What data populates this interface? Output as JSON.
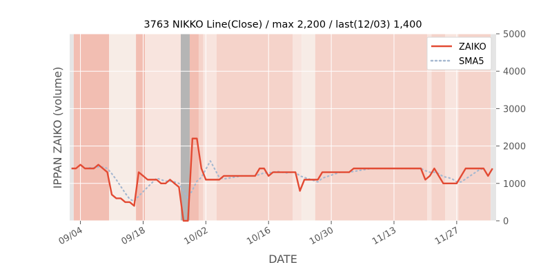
{
  "chart_data": {
    "type": "line",
    "title": "3763 NIKKO Line(Close) / max 2,200 / last(12/03) 1,400",
    "xlabel": "DATE",
    "ylabel": "IPPAN ZAIKO (volume)",
    "ylim": [
      0,
      5000
    ],
    "y_ticks": [
      0,
      1000,
      2000,
      3000,
      4000,
      5000
    ],
    "y_axis_side": "right",
    "x_ticks": [
      "09/04",
      "09/18",
      "10/02",
      "10/16",
      "10/30",
      "11/13",
      "11/27"
    ],
    "x_tick_days": [
      0,
      14,
      28,
      42,
      56,
      70,
      84
    ],
    "x_range_days": [
      -2.4,
      92.8
    ],
    "legend_position": "top-right",
    "grid": true,
    "colors": {
      "zaiko": "#e24a33",
      "sma5": "#a5b8d0",
      "band_strong": "#f2beb2",
      "band_mid": "#f5d3ca",
      "band_light": "#f8e4de",
      "band_pale": "#f7ece6",
      "band_gray": "#b5b5b5",
      "band_edge": "#e5e5e5"
    },
    "bands": [
      {
        "from": -2.4,
        "to": -1.5,
        "tone": "band_edge"
      },
      {
        "from": -1.5,
        "to": 6.4,
        "tone": "band_strong"
      },
      {
        "from": 6.4,
        "to": 12.4,
        "tone": "band_pale"
      },
      {
        "from": 12.4,
        "to": 14.4,
        "tone": "band_strong"
      },
      {
        "from": 14.4,
        "to": 22.4,
        "tone": "band_light"
      },
      {
        "from": 22.4,
        "to": 24.4,
        "tone": "band_gray"
      },
      {
        "from": 24.4,
        "to": 26.4,
        "tone": "band_strong"
      },
      {
        "from": 26.4,
        "to": 27.4,
        "tone": "band_mid"
      },
      {
        "from": 27.4,
        "to": 30.4,
        "tone": "band_light"
      },
      {
        "from": 30.4,
        "to": 47.4,
        "tone": "band_mid"
      },
      {
        "from": 47.4,
        "to": 49.4,
        "tone": "band_light"
      },
      {
        "from": 49.4,
        "to": 52.4,
        "tone": "band_pale"
      },
      {
        "from": 52.4,
        "to": 77.4,
        "tone": "band_mid"
      },
      {
        "from": 77.4,
        "to": 78.4,
        "tone": "band_light"
      },
      {
        "from": 78.4,
        "to": 81.4,
        "tone": "band_mid"
      },
      {
        "from": 81.4,
        "to": 84.4,
        "tone": "band_light"
      },
      {
        "from": 84.4,
        "to": 91.6,
        "tone": "band_mid"
      },
      {
        "from": 91.6,
        "to": 92.8,
        "tone": "band_edge"
      }
    ],
    "series": [
      {
        "name": "ZAIKO",
        "style": "solid",
        "points": [
          [
            -2,
            1400
          ],
          [
            -1,
            1400
          ],
          [
            0,
            1500
          ],
          [
            1,
            1400
          ],
          [
            2,
            1400
          ],
          [
            3,
            1400
          ],
          [
            4,
            1500
          ],
          [
            5,
            1400
          ],
          [
            6,
            1300
          ],
          [
            7,
            700
          ],
          [
            8,
            600
          ],
          [
            9,
            600
          ],
          [
            10,
            500
          ],
          [
            11,
            500
          ],
          [
            12,
            400
          ],
          [
            13,
            1300
          ],
          [
            14,
            1200
          ],
          [
            15,
            1100
          ],
          [
            16,
            1100
          ],
          [
            17,
            1100
          ],
          [
            18,
            1000
          ],
          [
            19,
            1000
          ],
          [
            20,
            1100
          ],
          [
            21,
            1000
          ],
          [
            22,
            900
          ],
          [
            23,
            0
          ],
          [
            24,
            0
          ],
          [
            25,
            2200
          ],
          [
            26,
            2200
          ],
          [
            27,
            1400
          ],
          [
            28,
            1100
          ],
          [
            29,
            1100
          ],
          [
            30,
            1100
          ],
          [
            31,
            1100
          ],
          [
            32,
            1200
          ],
          [
            33,
            1200
          ],
          [
            34,
            1200
          ],
          [
            35,
            1200
          ],
          [
            36,
            1200
          ],
          [
            37,
            1200
          ],
          [
            38,
            1200
          ],
          [
            39,
            1200
          ],
          [
            40,
            1400
          ],
          [
            41,
            1400
          ],
          [
            42,
            1200
          ],
          [
            43,
            1300
          ],
          [
            44,
            1300
          ],
          [
            45,
            1300
          ],
          [
            46,
            1300
          ],
          [
            47,
            1300
          ],
          [
            48,
            1300
          ],
          [
            49,
            800
          ],
          [
            50,
            1100
          ],
          [
            51,
            1100
          ],
          [
            52,
            1100
          ],
          [
            53,
            1100
          ],
          [
            54,
            1300
          ],
          [
            55,
            1300
          ],
          [
            56,
            1300
          ],
          [
            57,
            1300
          ],
          [
            58,
            1300
          ],
          [
            59,
            1300
          ],
          [
            60,
            1300
          ],
          [
            61,
            1400
          ],
          [
            62,
            1400
          ],
          [
            63,
            1400
          ],
          [
            64,
            1400
          ],
          [
            65,
            1400
          ],
          [
            66,
            1400
          ],
          [
            67,
            1400
          ],
          [
            68,
            1400
          ],
          [
            69,
            1400
          ],
          [
            70,
            1400
          ],
          [
            71,
            1400
          ],
          [
            72,
            1400
          ],
          [
            73,
            1400
          ],
          [
            74,
            1400
          ],
          [
            75,
            1400
          ],
          [
            76,
            1400
          ],
          [
            77,
            1100
          ],
          [
            78,
            1200
          ],
          [
            79,
            1400
          ],
          [
            80,
            1200
          ],
          [
            81,
            1000
          ],
          [
            82,
            1000
          ],
          [
            83,
            1000
          ],
          [
            84,
            1000
          ],
          [
            85,
            1200
          ],
          [
            86,
            1400
          ],
          [
            87,
            1400
          ],
          [
            88,
            1400
          ],
          [
            89,
            1400
          ],
          [
            90,
            1400
          ],
          [
            91,
            1200
          ],
          [
            92,
            1400
          ]
        ]
      },
      {
        "name": "SMA5",
        "style": "dotted",
        "points": [
          [
            2,
            1420
          ],
          [
            3,
            1420
          ],
          [
            4,
            1440
          ],
          [
            5,
            1440
          ],
          [
            6,
            1400
          ],
          [
            7,
            1260
          ],
          [
            8,
            1100
          ],
          [
            9,
            920
          ],
          [
            10,
            740
          ],
          [
            11,
            580
          ],
          [
            12,
            520
          ],
          [
            13,
            660
          ],
          [
            14,
            780
          ],
          [
            15,
            900
          ],
          [
            16,
            1020
          ],
          [
            17,
            1140
          ],
          [
            18,
            1100
          ],
          [
            19,
            1060
          ],
          [
            20,
            1060
          ],
          [
            21,
            1040
          ],
          [
            22,
            1000
          ],
          [
            23,
            800
          ],
          [
            24,
            600
          ],
          [
            25,
            820
          ],
          [
            26,
            1060
          ],
          [
            27,
            1160
          ],
          [
            28,
            1380
          ],
          [
            29,
            1600
          ],
          [
            30,
            1380
          ],
          [
            31,
            1160
          ],
          [
            32,
            1120
          ],
          [
            33,
            1140
          ],
          [
            34,
            1160
          ],
          [
            35,
            1180
          ],
          [
            36,
            1200
          ],
          [
            37,
            1200
          ],
          [
            38,
            1200
          ],
          [
            39,
            1200
          ],
          [
            40,
            1240
          ],
          [
            41,
            1280
          ],
          [
            42,
            1280
          ],
          [
            43,
            1300
          ],
          [
            44,
            1320
          ],
          [
            45,
            1300
          ],
          [
            46,
            1280
          ],
          [
            47,
            1300
          ],
          [
            48,
            1300
          ],
          [
            49,
            1200
          ],
          [
            50,
            1160
          ],
          [
            51,
            1120
          ],
          [
            52,
            1080
          ],
          [
            53,
            1040
          ],
          [
            54,
            1140
          ],
          [
            55,
            1180
          ],
          [
            56,
            1220
          ],
          [
            57,
            1260
          ],
          [
            58,
            1300
          ],
          [
            59,
            1300
          ],
          [
            60,
            1300
          ],
          [
            61,
            1320
          ],
          [
            62,
            1340
          ],
          [
            63,
            1360
          ],
          [
            64,
            1380
          ],
          [
            65,
            1400
          ],
          [
            66,
            1400
          ],
          [
            67,
            1400
          ],
          [
            68,
            1400
          ],
          [
            69,
            1400
          ],
          [
            70,
            1400
          ],
          [
            71,
            1400
          ],
          [
            72,
            1400
          ],
          [
            73,
            1400
          ],
          [
            74,
            1400
          ],
          [
            75,
            1400
          ],
          [
            76,
            1400
          ],
          [
            77,
            1340
          ],
          [
            78,
            1300
          ],
          [
            79,
            1300
          ],
          [
            80,
            1260
          ],
          [
            81,
            1180
          ],
          [
            82,
            1160
          ],
          [
            83,
            1120
          ],
          [
            84,
            1040
          ],
          [
            85,
            1040
          ],
          [
            86,
            1120
          ],
          [
            87,
            1200
          ],
          [
            88,
            1280
          ],
          [
            89,
            1360
          ],
          [
            90,
            1400
          ]
        ]
      }
    ]
  }
}
